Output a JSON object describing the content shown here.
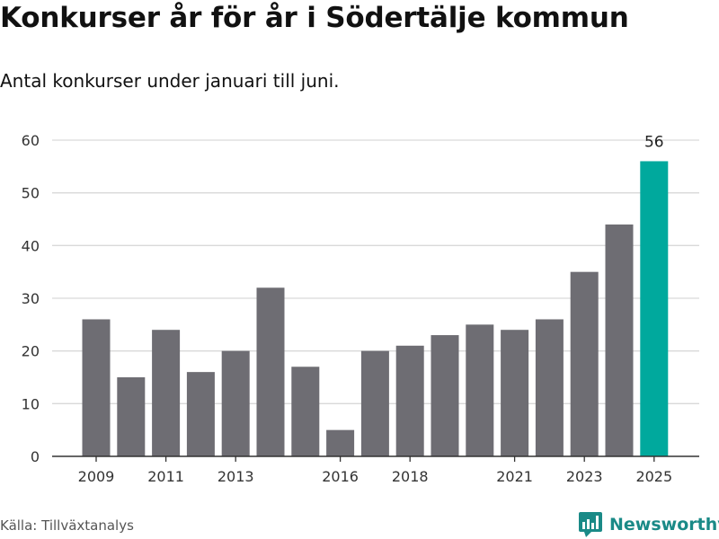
{
  "title": "Konkurser år för år i Södertälje kommun",
  "subtitle": "Antal konkurser under januari till juni.",
  "source": "Källa: Tillväxtanalys",
  "brand": "Newsworthy",
  "colors": {
    "bar": "#6e6d73",
    "highlight": "#00a99d",
    "grid": "#d9d9d9",
    "axis": "#333333",
    "brand": "#1a8a87"
  },
  "chart_data": {
    "type": "bar",
    "categories": [
      "2009",
      "2010",
      "2011",
      "2012",
      "2013",
      "2014",
      "2015",
      "2016",
      "2017",
      "2018",
      "2019",
      "2020",
      "2021",
      "2022",
      "2023",
      "2024",
      "2025"
    ],
    "values": [
      26,
      15,
      24,
      16,
      20,
      32,
      17,
      5,
      20,
      21,
      23,
      25,
      24,
      26,
      35,
      44,
      56
    ],
    "x_tick_labels": [
      "2009",
      "2011",
      "2013",
      "2016",
      "2018",
      "2021",
      "2023",
      "2025"
    ],
    "y_ticks": [
      0,
      10,
      20,
      30,
      40,
      50,
      60
    ],
    "ylim": [
      0,
      60
    ],
    "highlight": {
      "category": "2025",
      "label": "56"
    },
    "grid": true,
    "xlabel": "",
    "ylabel": ""
  }
}
